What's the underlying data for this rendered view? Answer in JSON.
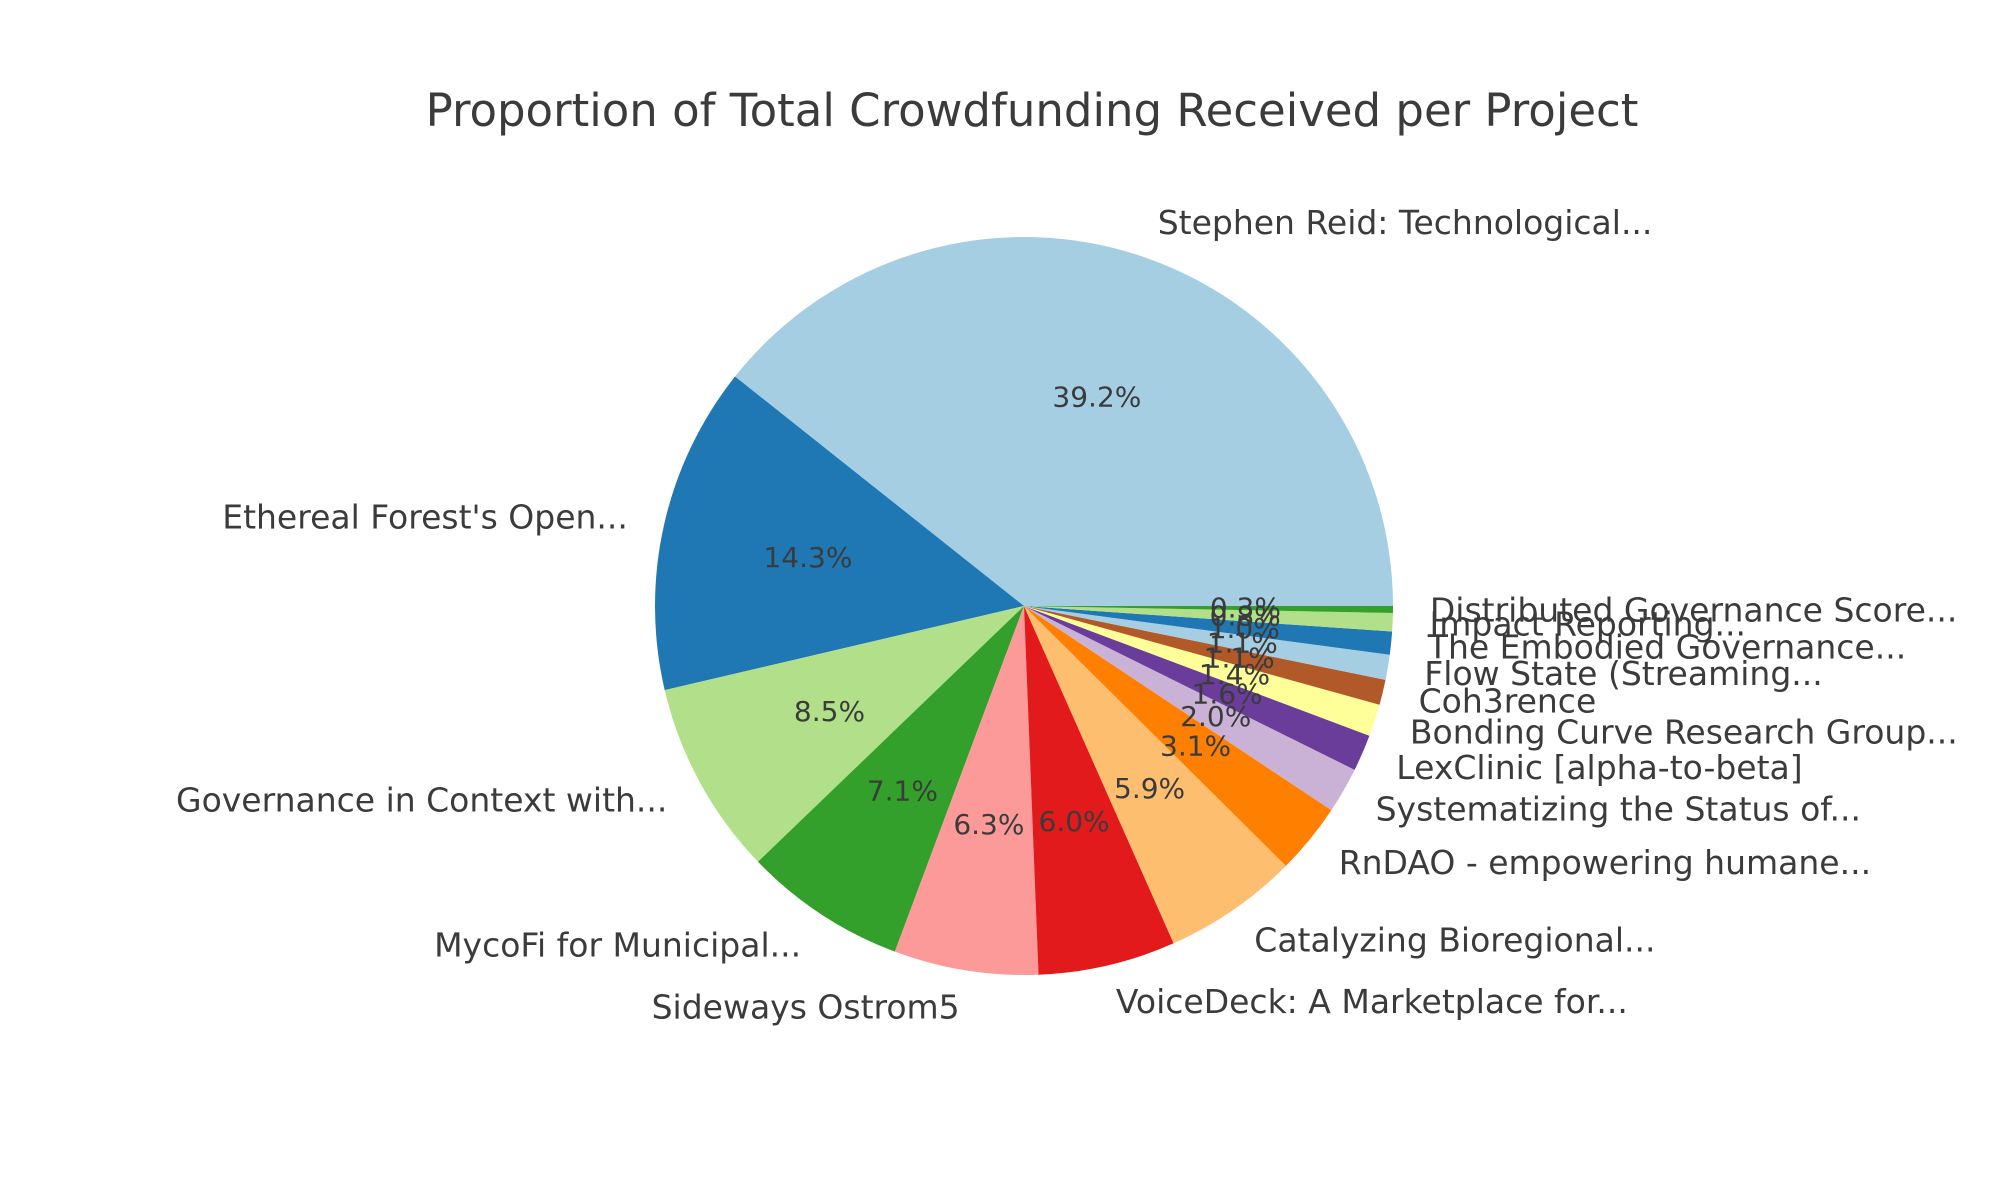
{
  "title": "Proportion of Total Crowdfunding Received per Project",
  "chart_data": {
    "type": "pie",
    "title": "Proportion of Total Crowdfunding Received per Project",
    "legend": "none (slices labeled directly around the pie)",
    "grid": false,
    "start_angle_deg": 0,
    "direction": "counterclockwise",
    "label_distance": 1.1,
    "pct_distance": 0.6,
    "text_color": "#3b3b3b",
    "background_color": "#ffffff",
    "palette_name": "Paired (cycled)",
    "slices": [
      {
        "label": "Stephen Reid: Technological...",
        "value": 39.2,
        "pct": "39.2%",
        "color": "#a6cee3"
      },
      {
        "label": "Ethereal Forest's Open...",
        "value": 14.3,
        "pct": "14.3%",
        "color": "#1f78b4"
      },
      {
        "label": "Governance in Context with...",
        "value": 8.5,
        "pct": "8.5%",
        "color": "#b2df8a"
      },
      {
        "label": "MycoFi for Municipal...",
        "value": 7.1,
        "pct": "7.1%",
        "color": "#33a02c"
      },
      {
        "label": "Sideways Ostrom5",
        "value": 6.3,
        "pct": "6.3%",
        "color": "#fb9a99"
      },
      {
        "label": "VoiceDeck: A Marketplace for...",
        "value": 6.0,
        "pct": "6.0%",
        "color": "#e31a1c"
      },
      {
        "label": "Catalyzing Bioregional...",
        "value": 5.9,
        "pct": "5.9%",
        "color": "#fdbf6f"
      },
      {
        "label": "RnDAO - empowering humane...",
        "value": 3.1,
        "pct": "3.1%",
        "color": "#ff7f00"
      },
      {
        "label": "Systematizing the Status of...",
        "value": 2.0,
        "pct": "2.0%",
        "color": "#cab2d6"
      },
      {
        "label": "LexClinic [alpha-to-beta]",
        "value": 1.6,
        "pct": "1.6%",
        "color": "#6a3d9a"
      },
      {
        "label": "Bonding Curve Research Group...",
        "value": 1.4,
        "pct": "1.4%",
        "color": "#ffff99"
      },
      {
        "label": "Coh3rence",
        "value": 1.1,
        "pct": "1.1%",
        "color": "#b15928"
      },
      {
        "label": "Flow State (Streaming...",
        "value": 1.1,
        "pct": "1.1%",
        "color": "#a6cee3"
      },
      {
        "label": "The Embodied Governance...",
        "value": 1.0,
        "pct": "1.0%",
        "color": "#1f78b4"
      },
      {
        "label": "Impact Reporting...",
        "value": 0.8,
        "pct": "0.8%",
        "color": "#b2df8a"
      },
      {
        "label": "Distributed Governance Score...",
        "value": 0.3,
        "pct": "0.3%",
        "color": "#33a02c"
      }
    ]
  }
}
